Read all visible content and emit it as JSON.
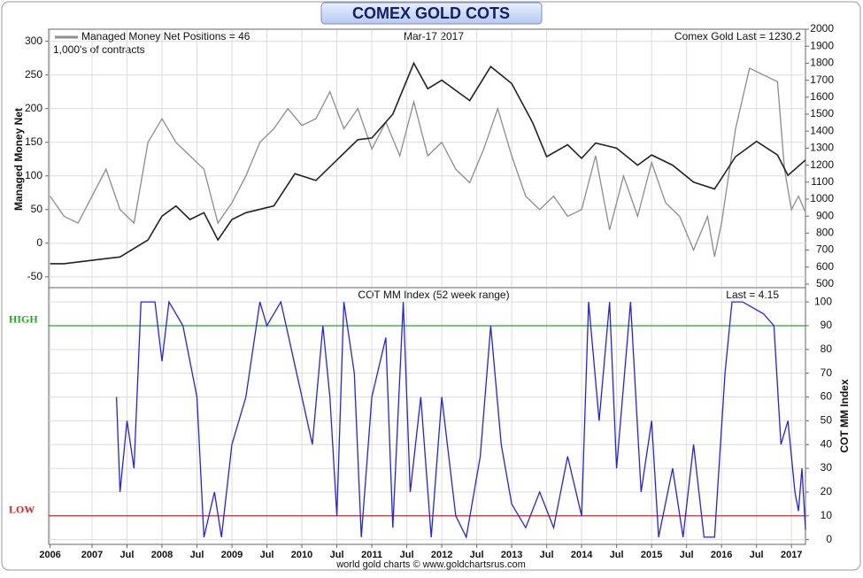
{
  "chart_data": [
    {
      "type": "line",
      "title": "COMEX GOLD COTS",
      "date_label": "Mar-17  2017",
      "note": "1,000's of contracts",
      "ylabel": "Managed Money Net",
      "xlim": [
        2006.38,
        2017.2
      ],
      "ylim": [
        -66,
        318
      ],
      "yticks": [
        -50,
        0,
        50,
        100,
        150,
        200,
        250,
        300
      ],
      "y2lim": [
        479,
        2000
      ],
      "y2ticks": [
        500,
        600,
        700,
        800,
        900,
        1000,
        1100,
        1200,
        1300,
        1400,
        1500,
        1600,
        1700,
        1800,
        1900,
        2000
      ],
      "grid": true,
      "legend": "top-left",
      "series": [
        {
          "name": "Managed Money Net Positions = 46",
          "color": "#8c8c8c",
          "x": [
            2006.4,
            2006.6,
            2006.8,
            2007.0,
            2007.2,
            2007.4,
            2007.6,
            2007.8,
            2008.0,
            2008.2,
            2008.4,
            2008.6,
            2008.8,
            2009.0,
            2009.2,
            2009.4,
            2009.6,
            2009.8,
            2010.0,
            2010.2,
            2010.4,
            2010.6,
            2010.8,
            2011.0,
            2011.2,
            2011.4,
            2011.6,
            2011.8,
            2012.0,
            2012.2,
            2012.4,
            2012.6,
            2012.8,
            2013.0,
            2013.2,
            2013.4,
            2013.6,
            2013.8,
            2014.0,
            2014.2,
            2014.4,
            2014.6,
            2014.8,
            2015.0,
            2015.2,
            2015.4,
            2015.6,
            2015.8,
            2015.9,
            2016.0,
            2016.2,
            2016.4,
            2016.6,
            2016.8,
            2016.9,
            2017.0,
            2017.1,
            2017.2
          ],
          "values": [
            70,
            40,
            30,
            70,
            110,
            50,
            30,
            150,
            185,
            150,
            130,
            110,
            30,
            60,
            100,
            150,
            170,
            200,
            175,
            185,
            225,
            170,
            200,
            140,
            180,
            130,
            210,
            130,
            150,
            110,
            90,
            140,
            200,
            130,
            70,
            50,
            70,
            40,
            50,
            130,
            20,
            100,
            40,
            120,
            60,
            40,
            -10,
            40,
            -20,
            30,
            170,
            260,
            250,
            240,
            110,
            50,
            70,
            46
          ]
        },
        {
          "name": "Comex Gold Last = 1230.2",
          "color": "#222222",
          "axis": "y2",
          "x": [
            2006.4,
            2006.6,
            2007.0,
            2007.4,
            2007.8,
            2008.0,
            2008.2,
            2008.4,
            2008.6,
            2008.8,
            2009.0,
            2009.2,
            2009.6,
            2009.9,
            2010.2,
            2010.5,
            2010.8,
            2011.0,
            2011.3,
            2011.6,
            2011.8,
            2012.0,
            2012.4,
            2012.7,
            2013.0,
            2013.3,
            2013.5,
            2013.8,
            2014.0,
            2014.2,
            2014.5,
            2014.8,
            2015.0,
            2015.3,
            2015.6,
            2015.9,
            2016.2,
            2016.5,
            2016.8,
            2016.95,
            2017.2
          ],
          "values": [
            620,
            620,
            640,
            660,
            760,
            900,
            960,
            880,
            920,
            760,
            880,
            920,
            960,
            1150,
            1110,
            1230,
            1350,
            1360,
            1500,
            1800,
            1650,
            1700,
            1580,
            1780,
            1680,
            1450,
            1250,
            1320,
            1240,
            1330,
            1300,
            1200,
            1260,
            1200,
            1100,
            1060,
            1250,
            1340,
            1260,
            1140,
            1230.2
          ]
        }
      ]
    },
    {
      "type": "line",
      "title": "COT MM Index (52 week range)",
      "last_label": "Last = 4.15",
      "ylabel": "COT MM Index",
      "footer": "world gold charts © www.goldchartsrus.com",
      "xlim": [
        2006.38,
        2017.2
      ],
      "xticks": [
        {
          "value": 2006.4,
          "label": "2006"
        },
        {
          "value": 2007,
          "label": "2007"
        },
        {
          "value": 2007.5,
          "label": "Jul"
        },
        {
          "value": 2008,
          "label": "2008"
        },
        {
          "value": 2008.5,
          "label": "Jul"
        },
        {
          "value": 2009,
          "label": "2009"
        },
        {
          "value": 2009.5,
          "label": "Jul"
        },
        {
          "value": 2010,
          "label": "2010"
        },
        {
          "value": 2010.5,
          "label": "Jul"
        },
        {
          "value": 2011,
          "label": "2011"
        },
        {
          "value": 2011.5,
          "label": "Jul"
        },
        {
          "value": 2012,
          "label": "2012"
        },
        {
          "value": 2012.5,
          "label": "Jul"
        },
        {
          "value": 2013,
          "label": "2013"
        },
        {
          "value": 2013.5,
          "label": "Jul"
        },
        {
          "value": 2014,
          "label": "2014"
        },
        {
          "value": 2014.5,
          "label": "Jul"
        },
        {
          "value": 2015,
          "label": "2015"
        },
        {
          "value": 2015.5,
          "label": "Jul"
        },
        {
          "value": 2016,
          "label": "2016"
        },
        {
          "value": 2016.5,
          "label": "Jul"
        },
        {
          "value": 2017,
          "label": "2017"
        }
      ],
      "ylim": [
        -2,
        106
      ],
      "yticks": [
        0,
        10,
        20,
        30,
        40,
        50,
        60,
        70,
        80,
        90,
        100
      ],
      "grid": true,
      "reference_lines": [
        {
          "label": "HIGH",
          "value": 90,
          "color": "#22aa22"
        },
        {
          "label": "LOW",
          "value": 10,
          "color": "#dd2222"
        }
      ],
      "series": [
        {
          "name": "COT MM Index",
          "color": "#2222ee",
          "x": [
            2007.35,
            2007.4,
            2007.5,
            2007.6,
            2007.7,
            2007.9,
            2008.0,
            2008.1,
            2008.3,
            2008.5,
            2008.6,
            2008.75,
            2008.85,
            2009.0,
            2009.2,
            2009.4,
            2009.5,
            2009.7,
            2009.85,
            2010.0,
            2010.15,
            2010.3,
            2010.4,
            2010.5,
            2010.6,
            2010.75,
            2010.85,
            2011.0,
            2011.2,
            2011.3,
            2011.45,
            2011.55,
            2011.7,
            2011.85,
            2012.0,
            2012.2,
            2012.35,
            2012.55,
            2012.7,
            2012.85,
            2013.0,
            2013.2,
            2013.4,
            2013.6,
            2013.8,
            2014.0,
            2014.1,
            2014.25,
            2014.4,
            2014.5,
            2014.7,
            2014.85,
            2015.0,
            2015.1,
            2015.3,
            2015.45,
            2015.6,
            2015.75,
            2015.9,
            2016.05,
            2016.15,
            2016.3,
            2016.6,
            2016.75,
            2016.85,
            2016.95,
            2017.05,
            2017.1,
            2017.15,
            2017.2
          ],
          "values": [
            60,
            20,
            50,
            30,
            100,
            100,
            75,
            100,
            90,
            60,
            1,
            20,
            1,
            40,
            60,
            100,
            90,
            100,
            80,
            60,
            40,
            90,
            60,
            10,
            100,
            70,
            1,
            60,
            85,
            5,
            100,
            20,
            60,
            1,
            60,
            10,
            1,
            35,
            90,
            40,
            15,
            5,
            20,
            5,
            35,
            10,
            100,
            50,
            100,
            30,
            100,
            20,
            50,
            1,
            30,
            1,
            40,
            1,
            1,
            70,
            100,
            100,
            95,
            90,
            40,
            50,
            20,
            12,
            30,
            4.15
          ]
        }
      ]
    }
  ]
}
